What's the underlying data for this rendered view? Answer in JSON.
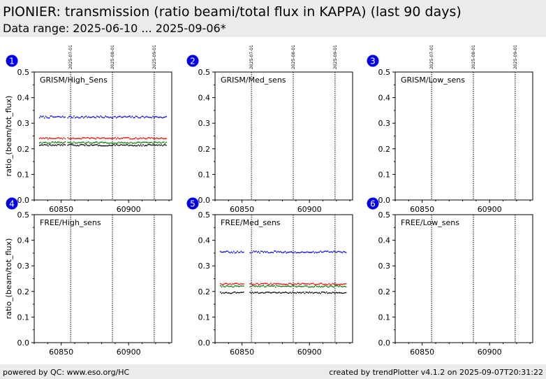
{
  "header": {
    "title": "PIONIER: transmission (ratio beami/total flux in KAPPA) (last 90 days)",
    "subtitle": "Data range: 2025-06-10 ... 2025-09-06*"
  },
  "footer": {
    "left": "powered by QC: www.eso.org/HC",
    "right": "created by trendPlotter v4.1.2 on 2025-09-07T20:31:22"
  },
  "colors": {
    "blue": "#0000dd",
    "red": "#ee0000",
    "green": "#007700",
    "black": "#000000",
    "badge": "#0000ee"
  },
  "chart_data": [
    {
      "type": "scatter",
      "panel": 1,
      "label": "GRISM/High_Sens",
      "ylabel": "ratio_(beam/tot_flux)",
      "xlim": [
        60830,
        60932
      ],
      "ylim": [
        0.0,
        0.5
      ],
      "xticks": [
        60850,
        60900
      ],
      "yticks": [
        "0.0",
        "0.1",
        "0.2",
        "0.3",
        "0.4",
        "0.5"
      ],
      "date_markers": [
        {
          "x": 60857,
          "label": "2025-07-01"
        },
        {
          "x": 60888,
          "label": "2025-08-01"
        },
        {
          "x": 60919,
          "label": "2025-09-01"
        }
      ],
      "segments": [
        [
          60834,
          60853
        ],
        [
          60855,
          60928
        ]
      ],
      "series": [
        {
          "color": "blue",
          "level": 0.324,
          "jitter": 0.004
        },
        {
          "color": "red",
          "level": 0.241,
          "jitter": 0.003
        },
        {
          "color": "green",
          "level": 0.224,
          "jitter": 0.003
        },
        {
          "color": "black",
          "level": 0.214,
          "jitter": 0.003
        }
      ]
    },
    {
      "type": "scatter",
      "panel": 2,
      "label": "GRISM/Med_sens",
      "ylabel": "",
      "xlim": [
        60830,
        60932
      ],
      "ylim": [
        0.0,
        0.5
      ],
      "xticks": [
        60850,
        60900
      ],
      "yticks": [
        "0.0",
        "0.1",
        "0.2",
        "0.3",
        "0.4",
        "0.5"
      ],
      "date_markers": [
        {
          "x": 60857,
          "label": "2025-07-01"
        },
        {
          "x": 60888,
          "label": "2025-08-01"
        },
        {
          "x": 60919,
          "label": "2025-09-01"
        }
      ],
      "segments": [],
      "series": []
    },
    {
      "type": "scatter",
      "panel": 3,
      "label": "GRISM/Low_sens",
      "ylabel": "",
      "xlim": [
        60830,
        60932
      ],
      "ylim": [
        0.0,
        0.5
      ],
      "xticks": [
        60850,
        60900
      ],
      "yticks": [
        "0.0",
        "0.1",
        "0.2",
        "0.3",
        "0.4",
        "0.5"
      ],
      "date_markers": [
        {
          "x": 60857,
          "label": "2025-07-01"
        },
        {
          "x": 60888,
          "label": "2025-08-01"
        },
        {
          "x": 60919,
          "label": "2025-09-01"
        }
      ],
      "segments": [],
      "series": []
    },
    {
      "type": "scatter",
      "panel": 4,
      "label": "FREE/High_sens",
      "ylabel": "ratio_(beam/tot_flux)",
      "xlim": [
        60830,
        60932
      ],
      "ylim": [
        0.0,
        0.5
      ],
      "xticks": [
        60850,
        60900
      ],
      "yticks": [
        "0.0",
        "0.1",
        "0.2",
        "0.3",
        "0.4",
        "0.5"
      ],
      "date_markers": [
        {
          "x": 60857,
          "label": ""
        },
        {
          "x": 60888,
          "label": ""
        },
        {
          "x": 60919,
          "label": ""
        }
      ],
      "segments": [],
      "series": []
    },
    {
      "type": "scatter",
      "panel": 5,
      "label": "FREE/Med_sens",
      "ylabel": "",
      "xlim": [
        60830,
        60932
      ],
      "ylim": [
        0.0,
        0.5
      ],
      "xticks": [
        60850,
        60900
      ],
      "yticks": [
        "0.0",
        "0.1",
        "0.2",
        "0.3",
        "0.4",
        "0.5"
      ],
      "date_markers": [
        {
          "x": 60857,
          "label": ""
        },
        {
          "x": 60888,
          "label": ""
        },
        {
          "x": 60919,
          "label": ""
        }
      ],
      "segments": [
        [
          60834,
          60852
        ],
        [
          60856,
          60928
        ]
      ],
      "series": [
        {
          "color": "blue",
          "level": 0.354,
          "jitter": 0.004
        },
        {
          "color": "red",
          "level": 0.229,
          "jitter": 0.003
        },
        {
          "color": "green",
          "level": 0.22,
          "jitter": 0.003
        },
        {
          "color": "black",
          "level": 0.195,
          "jitter": 0.003
        }
      ]
    },
    {
      "type": "scatter",
      "panel": 6,
      "label": "FREE/Low_sens",
      "ylabel": "",
      "xlim": [
        60830,
        60932
      ],
      "ylim": [
        0.0,
        0.5
      ],
      "xticks": [
        60850,
        60900
      ],
      "yticks": [
        "0.0",
        "0.1",
        "0.2",
        "0.3",
        "0.4",
        "0.5"
      ],
      "date_markers": [
        {
          "x": 60857,
          "label": ""
        },
        {
          "x": 60888,
          "label": ""
        },
        {
          "x": 60919,
          "label": ""
        }
      ],
      "segments": [],
      "series": []
    }
  ]
}
